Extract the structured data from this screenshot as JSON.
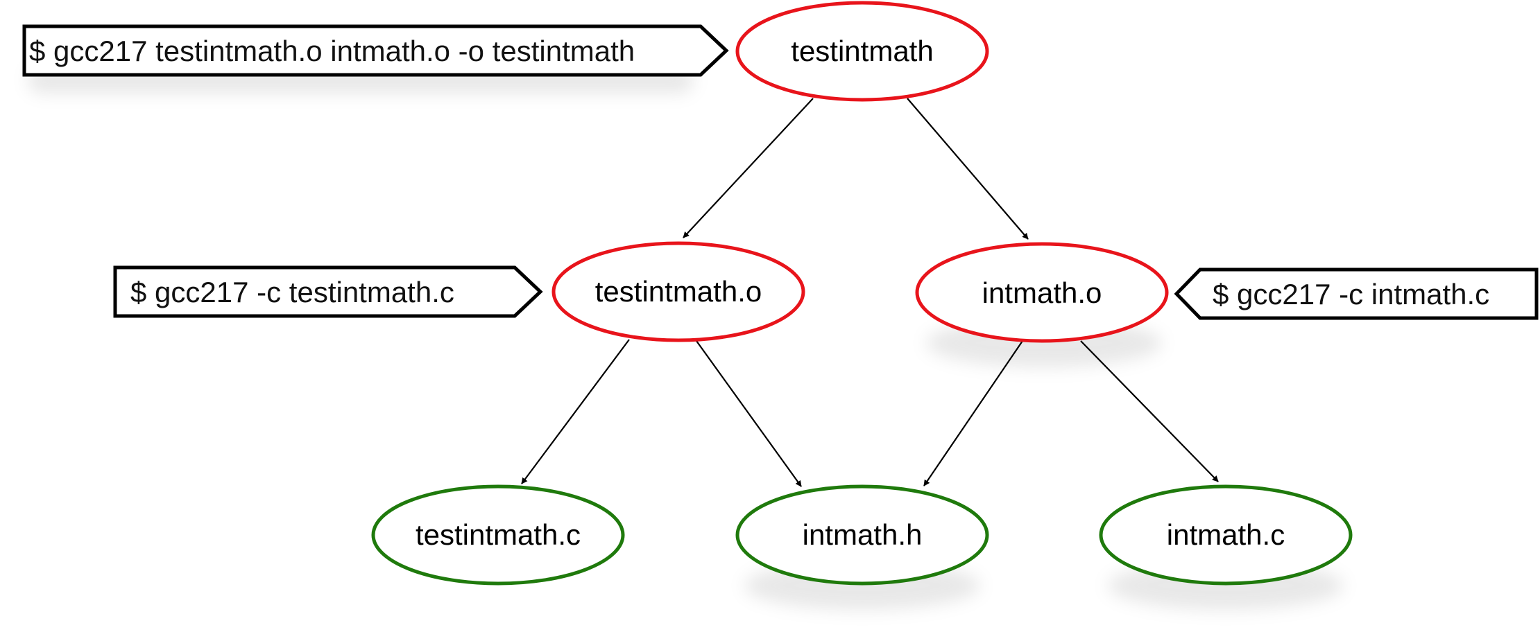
{
  "colors": {
    "target_node": "#e8141b",
    "source_node": "#1f7a0c",
    "edge": "#000000",
    "callout_border": "#000000"
  },
  "nodes": {
    "testintmath": {
      "label": "testintmath",
      "kind": "target"
    },
    "testintmath_o": {
      "label": "testintmath.o",
      "kind": "target"
    },
    "intmath_o": {
      "label": "intmath.o",
      "kind": "target"
    },
    "testintmath_c": {
      "label": "testintmath.c",
      "kind": "source"
    },
    "intmath_h": {
      "label": "intmath.h",
      "kind": "source"
    },
    "intmath_c": {
      "label": "intmath.c",
      "kind": "source"
    }
  },
  "edges": [
    {
      "from": "testintmath",
      "to": "testintmath_o"
    },
    {
      "from": "testintmath",
      "to": "intmath_o"
    },
    {
      "from": "testintmath_o",
      "to": "testintmath_c"
    },
    {
      "from": "testintmath_o",
      "to": "intmath_h"
    },
    {
      "from": "intmath_o",
      "to": "intmath_h"
    },
    {
      "from": "intmath_o",
      "to": "intmath_c"
    }
  ],
  "commands": {
    "link": "$ gcc217 testintmath.o intmath.o -o testintmath",
    "compile_testintmath": "$ gcc217 -c testintmath.c",
    "compile_intmath": "$ gcc217 -c intmath.c"
  }
}
